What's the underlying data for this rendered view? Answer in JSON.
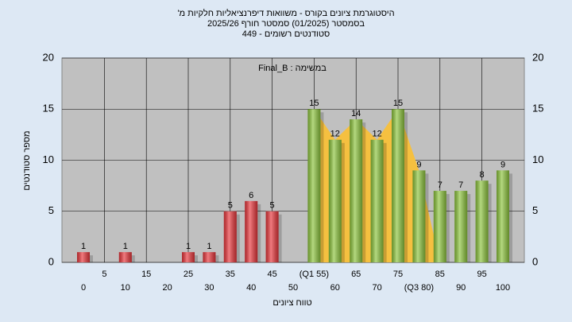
{
  "chart_data": {
    "type": "bar",
    "title": "היסטוגרמת ציונים בקורס - משוואות דיפרנציאליות חלקיות מ'",
    "subtitle": "בסמסטר (01/2025) סמסטר חורף 2025/26",
    "subtitle2": "סטודנטים רשומים - 449",
    "annotation": "במשימה : Final_B",
    "x_label": "טווח ציונים",
    "y_label": "מספר סטודנטים",
    "categories": [
      "0",
      "5",
      "10",
      "15",
      "20",
      "25",
      "30",
      "35",
      "40",
      "45",
      "50",
      "(Q1 55)",
      "60",
      "65",
      "70",
      "75",
      "(Q3 80)",
      "85",
      "90",
      "95",
      "100"
    ],
    "values": [
      1,
      null,
      1,
      null,
      null,
      1,
      1,
      5,
      6,
      5,
      null,
      15,
      12,
      14,
      12,
      15,
      9,
      7,
      7,
      8,
      9
    ],
    "colors": [
      "#e8353a",
      null,
      "#e8353a",
      null,
      null,
      "#e8353a",
      "#e8353a",
      "#e8353a",
      "#e8353a",
      "#e8353a",
      null,
      "#8cc43c",
      "#8cc43c",
      "#8cc43c",
      "#8cc43c",
      "#8cc43c",
      "#8cc43c",
      "#8cc43c",
      "#8cc43c",
      "#8cc43c",
      "#8cc43c"
    ],
    "area_color": "#f5c040",
    "ylim": [
      0,
      20
    ],
    "yticks": [
      0,
      5,
      10,
      15,
      20
    ],
    "grid": true
  }
}
